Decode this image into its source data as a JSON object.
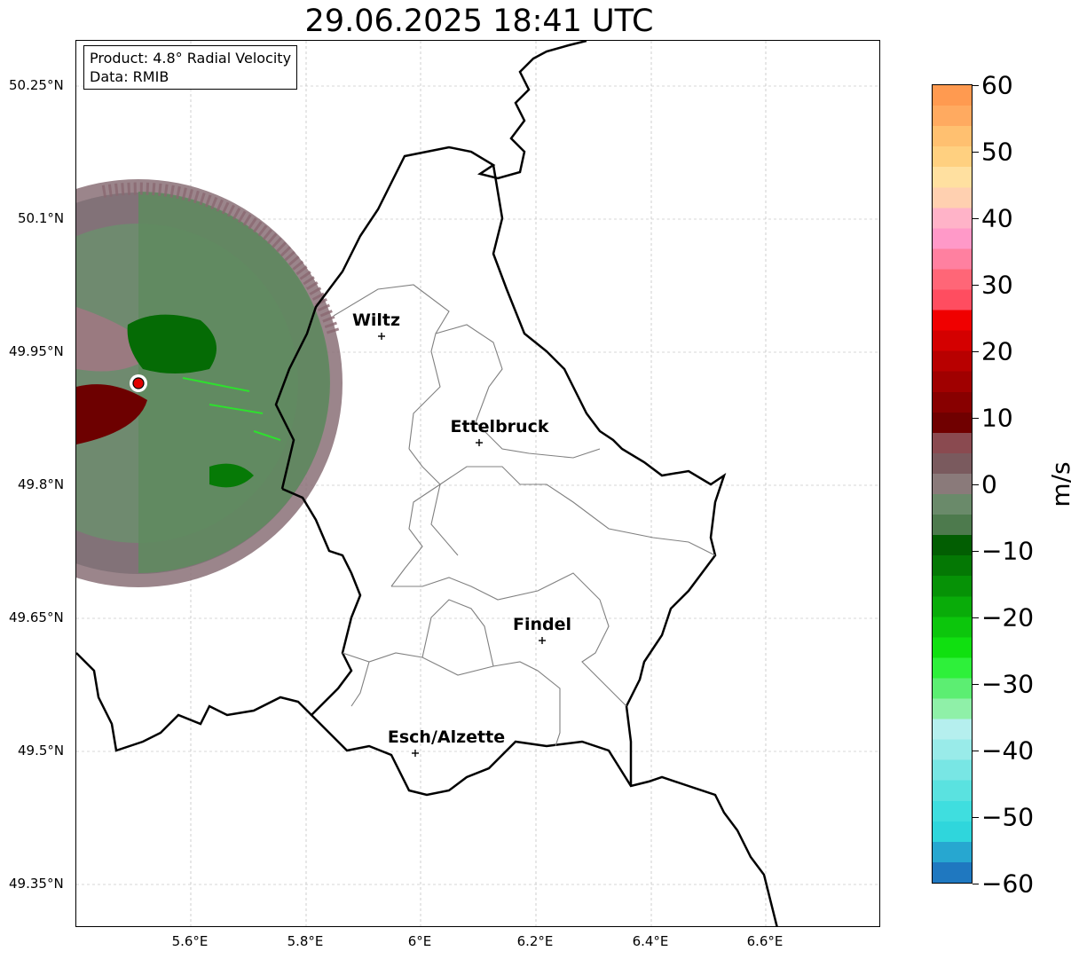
{
  "title": "29.06.2025 18:41 UTC",
  "info": {
    "product": "Product: 4.8° Radial Velocity",
    "data": "Data: RMIB"
  },
  "lat_labels": [
    "50.25°N",
    "50.1°N",
    "49.95°N",
    "49.8°N",
    "49.65°N",
    "49.5°N",
    "49.35°N"
  ],
  "lon_labels": [
    "5.6°E",
    "5.8°E",
    "6°E",
    "6.2°E",
    "6.4°E",
    "6.6°E"
  ],
  "cities": [
    {
      "name": "Wiltz",
      "lon": 5.93,
      "lat": 49.967
    },
    {
      "name": "Ettelbruck",
      "lon": 6.1,
      "lat": 49.847
    },
    {
      "name": "Findel",
      "lon": 6.21,
      "lat": 49.627
    },
    {
      "name": "Esch/Alzette",
      "lon": 5.99,
      "lat": 49.497
    }
  ],
  "radar_site": {
    "lon": 5.505,
    "lat": 49.914
  },
  "map_extent": {
    "lon": [
      5.4,
      6.8
    ],
    "lat": [
      49.3,
      50.3
    ]
  },
  "colorbar": {
    "unit": "m/s",
    "range": [
      -60,
      60
    ],
    "ticks": [
      "60",
      "50",
      "40",
      "30",
      "20",
      "10",
      "0",
      "−10",
      "−20",
      "−30",
      "−40",
      "−50",
      "−60"
    ],
    "colors": [
      "#1f78c0",
      "#27a7d0",
      "#2fd6dc",
      "#3fdedf",
      "#5ae2e0",
      "#78e6e4",
      "#99ebe9",
      "#b5efee",
      "#8ff0a8",
      "#5cee72",
      "#2ef03a",
      "#10e010",
      "#0cc60c",
      "#09ac09",
      "#069206",
      "#047804",
      "#025e02",
      "#4d7a4d",
      "#6a8a6a",
      "#8a7a7a",
      "#7a5a5e",
      "#8a4a50",
      "#700000",
      "#880000",
      "#a00000",
      "#b80000",
      "#d40000",
      "#f00000",
      "#ff4d60",
      "#ff6677",
      "#ff80a0",
      "#ff99c8",
      "#ffb3c8",
      "#ffd0b0",
      "#ffe0a0",
      "#ffd080",
      "#ffc070",
      "#ffaa60",
      "#ff9a50"
    ]
  }
}
